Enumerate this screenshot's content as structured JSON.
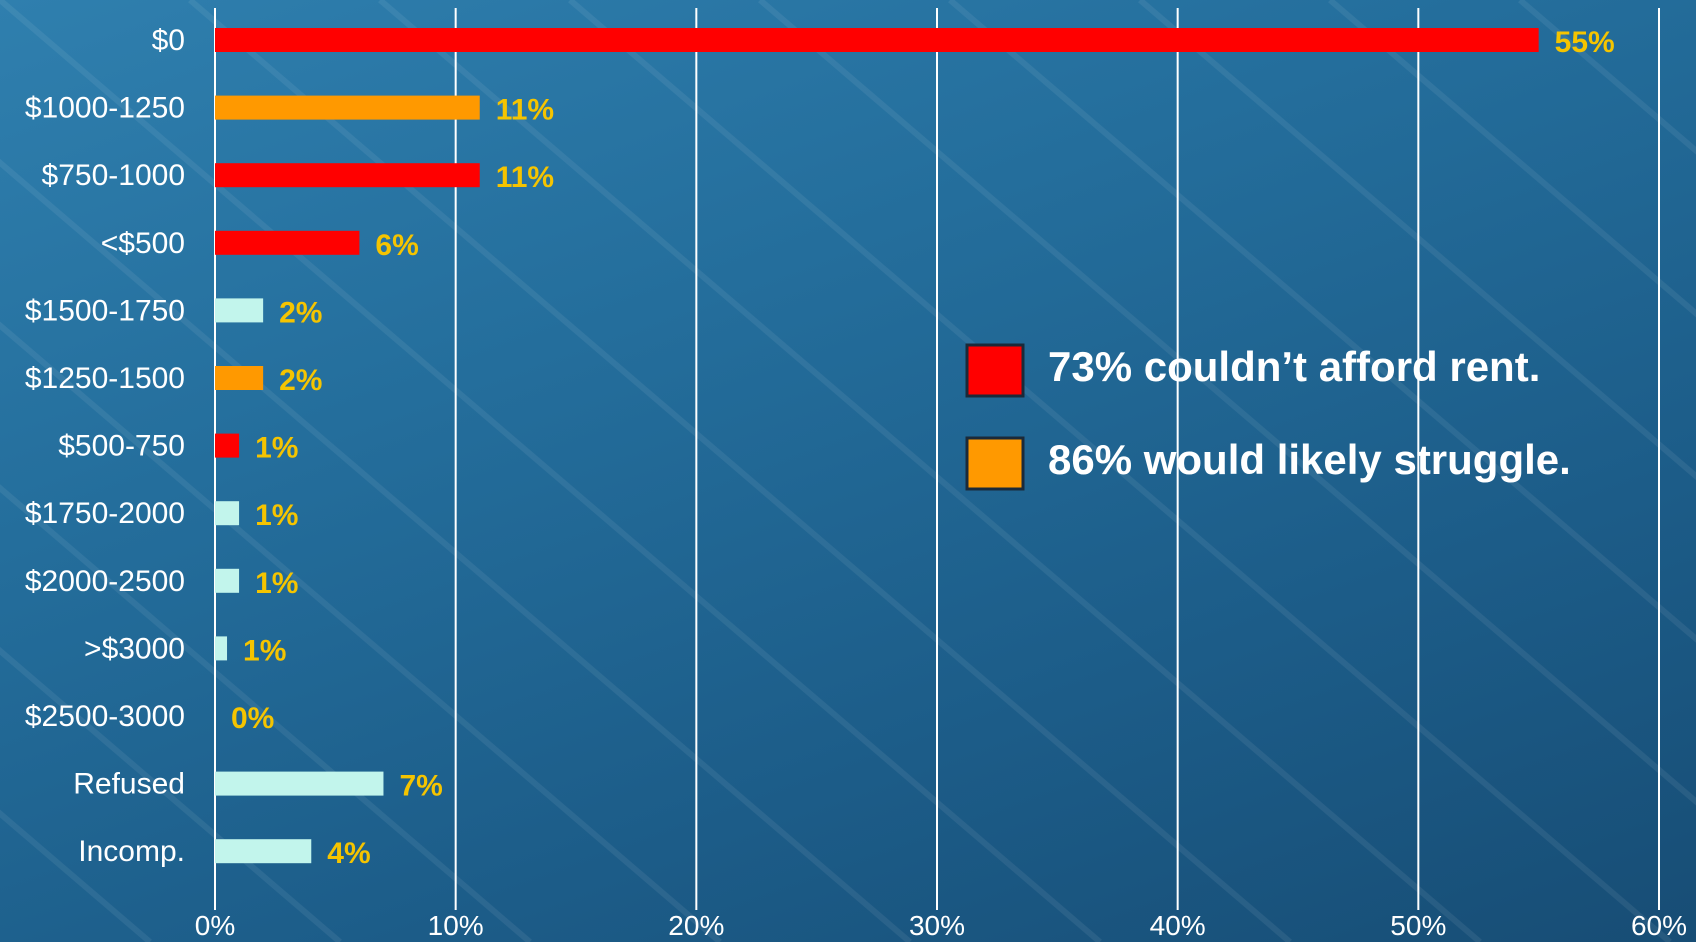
{
  "chart_data": {
    "type": "bar",
    "orientation": "horizontal",
    "categories": [
      "$0",
      "$1000-1250",
      "$750-1000",
      "<$500",
      "$1500-1750",
      "$1250-1500",
      "$500-750",
      "$1750-2000",
      "$2000-2500",
      ">$3000",
      "$2500-3000",
      "Refused",
      "Incomp."
    ],
    "values": [
      55,
      11,
      11,
      6,
      2,
      2,
      1,
      1,
      1,
      0.5,
      0,
      7,
      4
    ],
    "value_labels": [
      "55%",
      "11%",
      "11%",
      "6%",
      "2%",
      "2%",
      "1%",
      "1%",
      "1%",
      "1%",
      "0%",
      "7%",
      "4%"
    ],
    "bar_groups": [
      "red",
      "orange",
      "red",
      "red",
      "other",
      "orange",
      "red",
      "other",
      "other",
      "other",
      "other",
      "other",
      "other"
    ],
    "colors": {
      "red": "#ff0000",
      "orange": "#ff9900",
      "other": "#c2f5ec",
      "value_label": "#f5c400"
    },
    "xlim": [
      0,
      60
    ],
    "x_ticks": [
      0,
      10,
      20,
      30,
      40,
      50,
      60
    ],
    "x_tick_labels": [
      "0%",
      "10%",
      "20%",
      "30%",
      "40%",
      "50%",
      "60%"
    ],
    "grid": true,
    "legend_placement": "right",
    "legend": [
      {
        "group": "red",
        "label": "73% couldn’t afford rent."
      },
      {
        "group": "orange",
        "label": "86% would likely struggle."
      }
    ]
  }
}
